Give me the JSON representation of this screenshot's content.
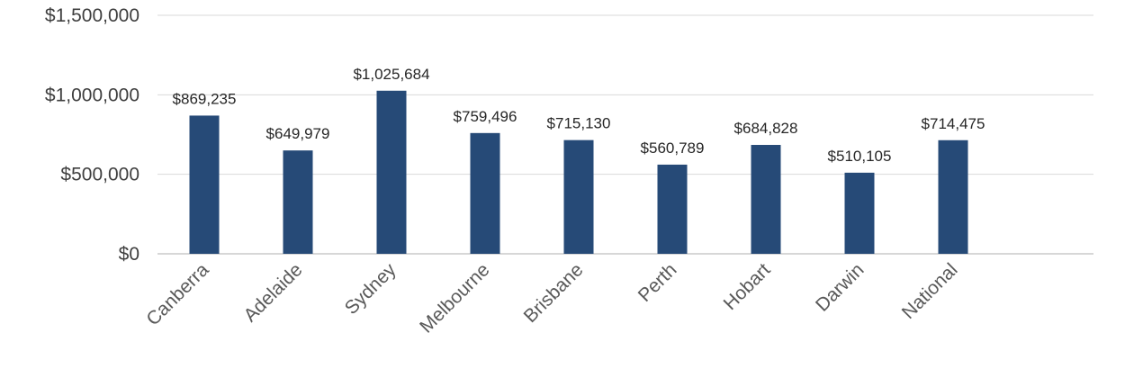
{
  "chart_data": {
    "type": "bar",
    "title": "",
    "xlabel": "",
    "ylabel": "",
    "categories": [
      "Canberra",
      "Adelaide",
      "Sydney",
      "Melbourne",
      "Brisbane",
      "Perth",
      "Hobart",
      "Darwin",
      "National"
    ],
    "values": [
      869235,
      649979,
      1025684,
      759496,
      715130,
      560789,
      684828,
      510105,
      714475
    ],
    "data_labels": [
      "$869,235",
      "$649,979",
      "$1,025,684",
      "$759,496",
      "$715,130",
      "$560,789",
      "$684,828",
      "$510,105",
      "$714,475"
    ],
    "ylim": [
      0,
      1500000
    ],
    "yticks": [
      0,
      500000,
      1000000,
      1500000
    ],
    "ytick_labels": [
      "$0",
      "$500,000",
      "$1,000,000",
      "$1,500,000"
    ],
    "grid": true,
    "bar_color": "#264a77"
  }
}
